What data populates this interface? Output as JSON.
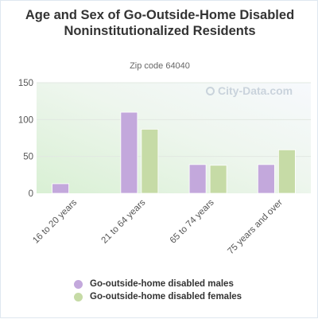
{
  "chart_data": {
    "type": "bar",
    "title": "Age and Sex of Go-Outside-Home Disabled Noninstitutionalized Residents",
    "subtitle": "Zip code 64040",
    "categories": [
      "16 to 20 years",
      "21 to 64 years",
      "65 to 74 years",
      "75 years and over"
    ],
    "series": [
      {
        "name": "Go-outside-home disabled males",
        "values": [
          13,
          110,
          39,
          39
        ],
        "color": "#c3a8dc"
      },
      {
        "name": "Go-outside-home disabled females",
        "values": [
          0,
          87,
          38,
          59
        ],
        "color": "#c6dba6"
      }
    ],
    "ylim": [
      0,
      150
    ],
    "yticks": [
      0,
      50,
      100,
      150
    ],
    "xlabel": "",
    "ylabel": "",
    "grid": true,
    "legend_position": "bottom"
  },
  "watermark": "City-Data.com"
}
